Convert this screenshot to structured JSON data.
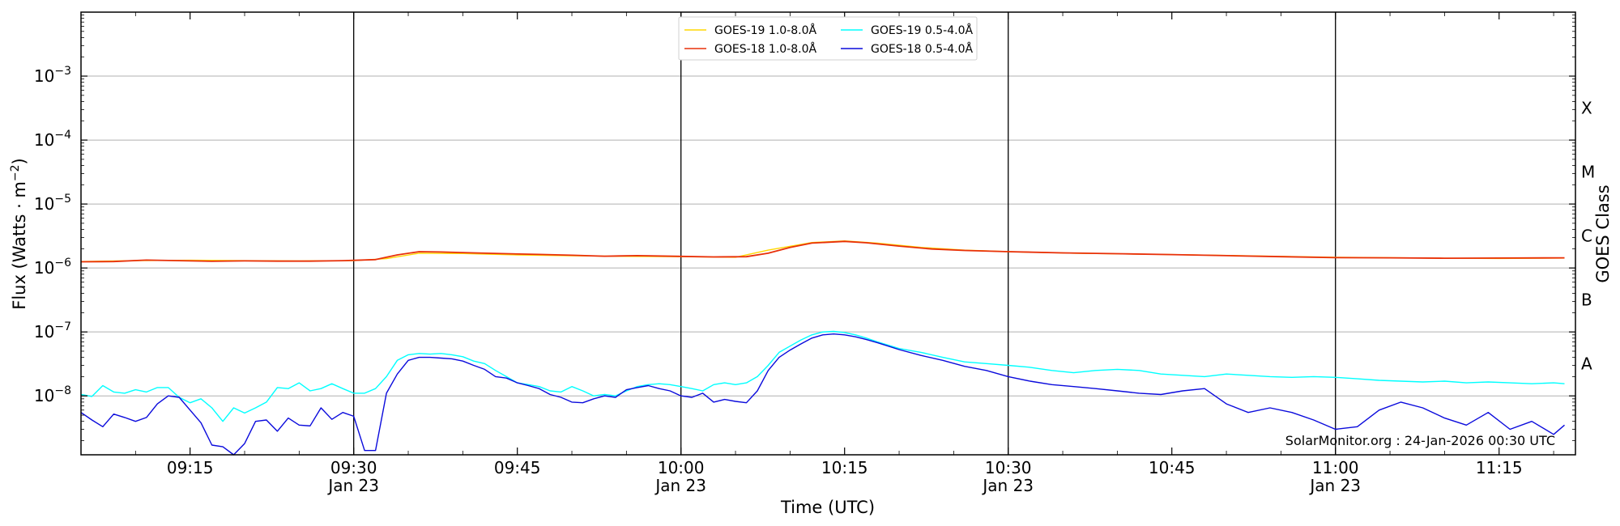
{
  "chart_data": {
    "type": "line",
    "title": "",
    "xlabel": "Time (UTC)",
    "ylabel_main": "Flux (Watts · m",
    "ylabel_sup": "−2",
    "ylabel_end": ")",
    "y2label": "GOES Class",
    "ylim": [
      1.2e-09,
      0.01
    ],
    "y_scale": "log",
    "xlim": [
      "2026-01-23 09:05",
      "2026-01-23 11:22"
    ],
    "grid": "horizontal",
    "legend_position": "top-center",
    "y_ticks": [
      {
        "value": 1e-08,
        "mantissa": "10",
        "exponent": "−8"
      },
      {
        "value": 1e-07,
        "mantissa": "10",
        "exponent": "−7"
      },
      {
        "value": 1e-06,
        "mantissa": "10",
        "exponent": "−6"
      },
      {
        "value": 1e-05,
        "mantissa": "10",
        "exponent": "−5"
      },
      {
        "value": 0.0001,
        "mantissa": "10",
        "exponent": "−4"
      },
      {
        "value": 0.001,
        "mantissa": "10",
        "exponent": "−3"
      }
    ],
    "x_ticks": [
      {
        "time": "09:15",
        "label": "09:15",
        "date": ""
      },
      {
        "time": "09:30",
        "label": "09:30",
        "date": "Jan 23"
      },
      {
        "time": "09:45",
        "label": "09:45",
        "date": ""
      },
      {
        "time": "10:00",
        "label": "10:00",
        "date": "Jan 23"
      },
      {
        "time": "10:15",
        "label": "10:15",
        "date": ""
      },
      {
        "time": "10:30",
        "label": "10:30",
        "date": "Jan 23"
      },
      {
        "time": "10:45",
        "label": "10:45",
        "date": ""
      },
      {
        "time": "11:00",
        "label": "11:00",
        "date": "Jan 23"
      },
      {
        "time": "11:15",
        "label": "11:15",
        "date": ""
      }
    ],
    "vertical_lines": [
      "09:30",
      "10:00",
      "10:30",
      "11:00"
    ],
    "goes_classes": [
      {
        "label": "A",
        "value": 1e-08
      },
      {
        "label": "B",
        "value": 1e-07
      },
      {
        "label": "C",
        "value": 1e-06
      },
      {
        "label": "M",
        "value": 1e-05
      },
      {
        "label": "X",
        "value": 0.0001
      }
    ],
    "series": [
      {
        "name": "GOES-19 1.0-8.0Å",
        "color": "#ffd700",
        "x": [
          "09:05",
          "09:10",
          "09:15",
          "09:20",
          "09:25",
          "09:30",
          "09:33",
          "09:36",
          "09:40",
          "09:45",
          "09:50",
          "09:55",
          "10:00",
          "10:05",
          "10:08",
          "10:12",
          "10:15",
          "10:18",
          "10:22",
          "10:26",
          "10:30",
          "10:36",
          "10:45",
          "10:55",
          "11:00",
          "11:05",
          "11:10",
          "11:15",
          "11:21"
        ],
        "values": [
          1.26e-06,
          1.3e-06,
          1.32e-06,
          1.3e-06,
          1.29e-06,
          1.3e-06,
          1.4e-06,
          1.7e-06,
          1.68e-06,
          1.6e-06,
          1.55e-06,
          1.52e-06,
          1.5e-06,
          1.47e-06,
          1.9e-06,
          2.5e-06,
          2.65e-06,
          2.45e-06,
          2.1e-06,
          1.9e-06,
          1.8e-06,
          1.7e-06,
          1.62e-06,
          1.52e-06,
          1.47e-06,
          1.45e-06,
          1.42e-06,
          1.41e-06,
          1.43e-06
        ]
      },
      {
        "name": "GOES-18 1.0-8.0Å",
        "color": "#e8300a",
        "x": [
          "09:05",
          "09:08",
          "09:11",
          "09:14",
          "09:17",
          "09:20",
          "09:23",
          "09:26",
          "09:29",
          "09:32",
          "09:34",
          "09:36",
          "09:38",
          "09:41",
          "09:44",
          "09:47",
          "09:50",
          "09:53",
          "09:56",
          "10:00",
          "10:03",
          "10:06",
          "10:08",
          "10:10",
          "10:12",
          "10:15",
          "10:17",
          "10:20",
          "10:23",
          "10:26",
          "10:30",
          "10:35",
          "10:40",
          "10:45",
          "10:50",
          "10:55",
          "11:00",
          "11:05",
          "11:10",
          "11:15",
          "11:21"
        ],
        "values": [
          1.25e-06,
          1.26e-06,
          1.33e-06,
          1.3e-06,
          1.27e-06,
          1.29e-06,
          1.28e-06,
          1.28e-06,
          1.3e-06,
          1.35e-06,
          1.6e-06,
          1.8e-06,
          1.78e-06,
          1.72e-06,
          1.67e-06,
          1.63e-06,
          1.58e-06,
          1.53e-06,
          1.56e-06,
          1.52e-06,
          1.49e-06,
          1.5e-06,
          1.7e-06,
          2.1e-06,
          2.45e-06,
          2.6e-06,
          2.48e-06,
          2.2e-06,
          1.98e-06,
          1.88e-06,
          1.8e-06,
          1.72e-06,
          1.67e-06,
          1.62e-06,
          1.56e-06,
          1.5e-06,
          1.45e-06,
          1.44e-06,
          1.42e-06,
          1.43e-06,
          1.44e-06
        ]
      },
      {
        "name": "GOES-19 0.5-4.0Å",
        "color": "#00ffff",
        "x": [
          "09:05",
          "09:06",
          "09:07",
          "09:08",
          "09:09",
          "09:10",
          "09:11",
          "09:12",
          "09:13",
          "09:14",
          "09:15",
          "09:16",
          "09:17",
          "09:18",
          "09:19",
          "09:20",
          "09:21",
          "09:22",
          "09:23",
          "09:24",
          "09:25",
          "09:26",
          "09:27",
          "09:28",
          "09:29",
          "09:30",
          "09:31",
          "09:32",
          "09:33",
          "09:34",
          "09:35",
          "09:36",
          "09:37",
          "09:38",
          "09:39",
          "09:40",
          "09:41",
          "09:42",
          "09:43",
          "09:44",
          "09:45",
          "09:46",
          "09:47",
          "09:48",
          "09:49",
          "09:50",
          "09:51",
          "09:52",
          "09:53",
          "09:54",
          "09:55",
          "09:56",
          "09:57",
          "09:58",
          "09:59",
          "10:00",
          "10:01",
          "10:02",
          "10:03",
          "10:04",
          "10:05",
          "10:06",
          "10:07",
          "10:08",
          "10:09",
          "10:10",
          "10:11",
          "10:12",
          "10:13",
          "10:14",
          "10:15",
          "10:16",
          "10:17",
          "10:18",
          "10:19",
          "10:20",
          "10:22",
          "10:24",
          "10:26",
          "10:28",
          "10:30",
          "10:32",
          "10:34",
          "10:36",
          "10:38",
          "10:40",
          "10:42",
          "10:44",
          "10:46",
          "10:48",
          "10:50",
          "10:52",
          "10:54",
          "10:56",
          "10:58",
          "11:00",
          "11:02",
          "11:04",
          "11:06",
          "11:08",
          "11:10",
          "11:12",
          "11:14",
          "11:16",
          "11:18",
          "11:20",
          "11:21"
        ],
        "values": [
          1.05e-08,
          9.8e-09,
          1.45e-08,
          1.15e-08,
          1.1e-08,
          1.25e-08,
          1.15e-08,
          1.35e-08,
          1.35e-08,
          9.5e-09,
          7.8e-09,
          9e-09,
          6.5e-09,
          4e-09,
          6.5e-09,
          5.4e-09,
          6.5e-09,
          8e-09,
          1.35e-08,
          1.3e-08,
          1.6e-08,
          1.2e-08,
          1.3e-08,
          1.55e-08,
          1.3e-08,
          1.1e-08,
          1.1e-08,
          1.3e-08,
          2e-08,
          3.6e-08,
          4.4e-08,
          4.6e-08,
          4.5e-08,
          4.6e-08,
          4.4e-08,
          4.1e-08,
          3.5e-08,
          3.2e-08,
          2.5e-08,
          2e-08,
          1.6e-08,
          1.5e-08,
          1.4e-08,
          1.2e-08,
          1.15e-08,
          1.4e-08,
          1.2e-08,
          1e-08,
          1.05e-08,
          1e-08,
          1.2e-08,
          1.4e-08,
          1.5e-08,
          1.55e-08,
          1.5e-08,
          1.4e-08,
          1.3e-08,
          1.2e-08,
          1.5e-08,
          1.6e-08,
          1.5e-08,
          1.6e-08,
          2e-08,
          3e-08,
          4.8e-08,
          6e-08,
          7.5e-08,
          9e-08,
          1e-07,
          1.02e-07,
          9.8e-08,
          9e-08,
          8e-08,
          7e-08,
          6.2e-08,
          5.5e-08,
          4.8e-08,
          4e-08,
          3.4e-08,
          3.2e-08,
          3e-08,
          2.8e-08,
          2.5e-08,
          2.3e-08,
          2.5e-08,
          2.6e-08,
          2.5e-08,
          2.2e-08,
          2.1e-08,
          2e-08,
          2.2e-08,
          2.1e-08,
          2e-08,
          1.95e-08,
          2e-08,
          1.95e-08,
          1.85e-08,
          1.75e-08,
          1.7e-08,
          1.65e-08,
          1.7e-08,
          1.6e-08,
          1.65e-08,
          1.6e-08,
          1.55e-08,
          1.6e-08,
          1.55e-08
        ]
      },
      {
        "name": "GOES-18 0.5-4.0Å",
        "color": "#0a0adc",
        "x": [
          "09:05",
          "09:06",
          "09:07",
          "09:08",
          "09:09",
          "09:10",
          "09:11",
          "09:12",
          "09:13",
          "09:14",
          "09:15",
          "09:16",
          "09:17",
          "09:18",
          "09:19",
          "09:20",
          "09:21",
          "09:22",
          "09:23",
          "09:24",
          "09:25",
          "09:26",
          "09:27",
          "09:28",
          "09:29",
          "09:30",
          "09:31",
          "09:32",
          "09:33",
          "09:34",
          "09:35",
          "09:36",
          "09:37",
          "09:38",
          "09:39",
          "09:40",
          "09:41",
          "09:42",
          "09:43",
          "09:44",
          "09:45",
          "09:46",
          "09:47",
          "09:48",
          "09:49",
          "09:50",
          "09:51",
          "09:52",
          "09:53",
          "09:54",
          "09:55",
          "09:56",
          "09:57",
          "09:58",
          "09:59",
          "10:00",
          "10:01",
          "10:02",
          "10:03",
          "10:04",
          "10:05",
          "10:06",
          "10:07",
          "10:08",
          "10:09",
          "10:10",
          "10:11",
          "10:12",
          "10:13",
          "10:14",
          "10:15",
          "10:16",
          "10:17",
          "10:18",
          "10:19",
          "10:20",
          "10:22",
          "10:24",
          "10:26",
          "10:28",
          "10:30",
          "10:32",
          "10:34",
          "10:36",
          "10:38",
          "10:40",
          "10:42",
          "10:44",
          "10:46",
          "10:48",
          "10:50",
          "10:52",
          "10:54",
          "10:56",
          "10:58",
          "11:00",
          "11:02",
          "11:04",
          "11:06",
          "11:08",
          "11:10",
          "11:12",
          "11:14",
          "11:16",
          "11:18",
          "11:20",
          "11:21"
        ],
        "values": [
          5.5e-09,
          4.2e-09,
          3.3e-09,
          5.2e-09,
          4.6e-09,
          4e-09,
          4.6e-09,
          7.5e-09,
          1e-08,
          9.5e-09,
          6e-09,
          3.8e-09,
          1.7e-09,
          1.6e-09,
          1.1e-09,
          1.8e-09,
          4e-09,
          4.2e-09,
          2.8e-09,
          4.5e-09,
          3.5e-09,
          3.4e-09,
          6.5e-09,
          4.3e-09,
          5.5e-09,
          4.8e-09,
          1.4e-09,
          1.4e-09,
          1.1e-08,
          2.2e-08,
          3.6e-08,
          4e-08,
          4e-08,
          3.9e-08,
          3.8e-08,
          3.5e-08,
          3e-08,
          2.6e-08,
          2e-08,
          1.9e-08,
          1.6e-08,
          1.45e-08,
          1.3e-08,
          1.05e-08,
          9.5e-09,
          8e-09,
          7.8e-09,
          9e-09,
          1e-08,
          9.5e-09,
          1.25e-08,
          1.35e-08,
          1.45e-08,
          1.3e-08,
          1.2e-08,
          1e-08,
          9.5e-09,
          1.1e-08,
          8e-09,
          8.8e-09,
          8.2e-09,
          7.8e-09,
          1.2e-08,
          2.5e-08,
          4e-08,
          5.2e-08,
          6.5e-08,
          8e-08,
          9e-08,
          9.3e-08,
          9e-08,
          8.4e-08,
          7.6e-08,
          6.8e-08,
          6e-08,
          5.3e-08,
          4.3e-08,
          3.6e-08,
          2.9e-08,
          2.5e-08,
          2e-08,
          1.7e-08,
          1.5e-08,
          1.4e-08,
          1.3e-08,
          1.2e-08,
          1.1e-08,
          1.05e-08,
          1.2e-08,
          1.3e-08,
          7.5e-09,
          5.5e-09,
          6.5e-09,
          5.5e-09,
          4.2e-09,
          3e-09,
          3.3e-09,
          6e-09,
          8e-09,
          6.5e-09,
          4.5e-09,
          3.5e-09,
          5.5e-09,
          3e-09,
          4e-09,
          2.5e-09,
          3.5e-09
        ]
      }
    ],
    "credit": "SolarMonitor.org : 24-Jan-2026 00:30 UTC"
  }
}
